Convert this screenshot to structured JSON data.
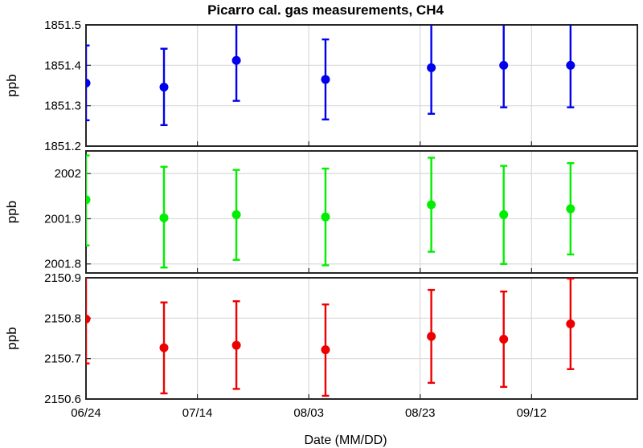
{
  "chart_data": {
    "type": "scatter",
    "title": "Picarro cal. gas measurements, CH4",
    "xlabel": "Date (MM/DD)",
    "x_ticks": [
      "06/24",
      "07/14",
      "08/03",
      "08/23",
      "09/12"
    ],
    "x_dates": [
      "06/24",
      "07/08",
      "07/21",
      "08/06",
      "08/25",
      "09/07",
      "09/19"
    ],
    "grid": true,
    "panels": [
      {
        "ylabel": "ppb",
        "color": "#0000ee",
        "ylim": [
          1851.2,
          1851.5
        ],
        "y_ticks": [
          "1851.2",
          "1851.3",
          "1851.4",
          "1851.5"
        ],
        "series": [
          {
            "values": [
              1851.356,
              1851.346,
              1851.412,
              1851.365,
              1851.394,
              1851.4,
              1851.4
            ],
            "err_low": [
              1851.264,
              1851.252,
              1851.312,
              1851.266,
              1851.28,
              1851.296,
              1851.296
            ],
            "err_high": [
              1851.449,
              1851.441,
              1851.51,
              1851.464,
              1851.508,
              1851.504,
              1851.504
            ]
          }
        ]
      },
      {
        "ylabel": "ppb",
        "color": "#00ee00",
        "ylim": [
          2001.78,
          2002.05
        ],
        "y_ticks": [
          "2001.8",
          "2001.9",
          "2002"
        ],
        "series": [
          {
            "values": [
              2001.942,
              2001.902,
              2001.909,
              2001.904,
              2001.931,
              2001.909,
              2001.922
            ],
            "err_low": [
              2001.841,
              2001.792,
              2001.809,
              2001.797,
              2001.827,
              2001.8,
              2001.821
            ],
            "err_high": [
              2002.04,
              2002.015,
              2002.008,
              2002.011,
              2002.035,
              2002.017,
              2002.023
            ]
          }
        ]
      },
      {
        "ylabel": "ppb",
        "color": "#ee0000",
        "ylim": [
          2150.6,
          2150.9
        ],
        "y_ticks": [
          "2150.6",
          "2150.7",
          "2150.8",
          "2150.9"
        ],
        "series": [
          {
            "values": [
              2150.798,
              2150.727,
              2150.733,
              2150.722,
              2150.755,
              2150.748,
              2150.786
            ],
            "err_low": [
              2150.688,
              2150.614,
              2150.625,
              2150.608,
              2150.64,
              2150.63,
              2150.674
            ],
            "err_high": [
              2150.908,
              2150.839,
              2150.842,
              2150.834,
              2150.87,
              2150.866,
              2150.898
            ]
          }
        ]
      }
    ]
  }
}
